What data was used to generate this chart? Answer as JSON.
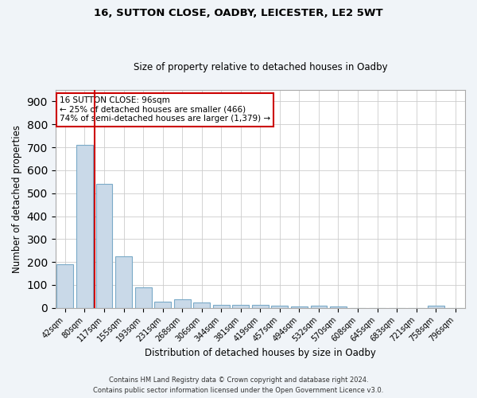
{
  "title1": "16, SUTTON CLOSE, OADBY, LEICESTER, LE2 5WT",
  "title2": "Size of property relative to detached houses in Oadby",
  "xlabel": "Distribution of detached houses by size in Oadby",
  "ylabel": "Number of detached properties",
  "categories": [
    "42sqm",
    "80sqm",
    "117sqm",
    "155sqm",
    "193sqm",
    "231sqm",
    "268sqm",
    "306sqm",
    "344sqm",
    "381sqm",
    "419sqm",
    "457sqm",
    "494sqm",
    "532sqm",
    "570sqm",
    "608sqm",
    "645sqm",
    "683sqm",
    "721sqm",
    "758sqm",
    "796sqm"
  ],
  "values": [
    190,
    710,
    540,
    225,
    91,
    27,
    37,
    24,
    14,
    13,
    13,
    11,
    8,
    10,
    7,
    0,
    0,
    0,
    0,
    9,
    0
  ],
  "bar_color": "#c9d9e8",
  "bar_edge_color": "#7aaac8",
  "annotation_line1": "16 SUTTON CLOSE: 96sqm",
  "annotation_line2": "← 25% of detached houses are smaller (466)",
  "annotation_line3": "74% of semi-detached houses are larger (1,379) →",
  "vline_color": "#cc0000",
  "annotation_box_edge_color": "#cc0000",
  "ylim": [
    0,
    950
  ],
  "yticks": [
    0,
    100,
    200,
    300,
    400,
    500,
    600,
    700,
    800,
    900
  ],
  "footer1": "Contains HM Land Registry data © Crown copyright and database right 2024.",
  "footer2": "Contains public sector information licensed under the Open Government Licence v3.0.",
  "bg_color": "#f0f4f8",
  "plot_bg_color": "#ffffff"
}
